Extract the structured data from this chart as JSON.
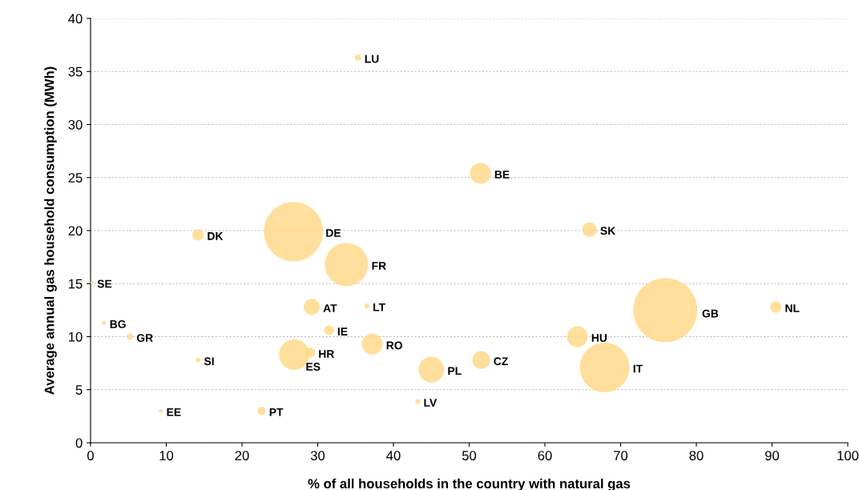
{
  "chart_data": {
    "type": "bubble",
    "xlabel": "% of all households in the country with natural gas",
    "ylabel": "Average annual gas household consumption (MWh)",
    "x": [
      35.3,
      51.5,
      26.8,
      14.2,
      65.9,
      33.8,
      0.2,
      29.2,
      36.5,
      75.9,
      90.5,
      1.8,
      31.5,
      5.2,
      64.3,
      37.2,
      29.0,
      26.9,
      14.2,
      51.6,
      45.0,
      67.9,
      43.2,
      9.3,
      22.6
    ],
    "values": [
      36.3,
      25.4,
      19.9,
      19.6,
      20.1,
      16.8,
      15.1,
      12.8,
      12.9,
      12.5,
      12.8,
      11.3,
      10.6,
      10.0,
      10.0,
      9.3,
      8.5,
      8.3,
      7.8,
      7.8,
      6.9,
      7.1,
      3.9,
      3.0,
      3.0
    ],
    "sizes": [
      0.01,
      0.106,
      0.856,
      0.031,
      0.051,
      0.456,
      0.003,
      0.063,
      0.006,
      1,
      0.031,
      0.004,
      0.023,
      0.01,
      0.106,
      0.106,
      0.023,
      0.226,
      0.006,
      0.076,
      0.16,
      0.6,
      0.006,
      0.004,
      0.016
    ],
    "color": "#ffd98a",
    "annotations": [
      {
        "text": "LU",
        "x": 35.3,
        "y": 36.3
      },
      {
        "text": "BE",
        "x": 51.5,
        "y": 25.4
      },
      {
        "text": "DE",
        "x": 30.6,
        "y": 19.9
      },
      {
        "text": "DK",
        "x": 14.2,
        "y": 19.6
      },
      {
        "text": "SK",
        "x": 65.9,
        "y": 20.1
      },
      {
        "text": "FR",
        "x": 33.8,
        "y": 16.8
      },
      {
        "text": "SE",
        "x": 0.2,
        "y": 15.1
      },
      {
        "text": "AT",
        "x": 29.2,
        "y": 12.8
      },
      {
        "text": "LT",
        "x": 36.5,
        "y": 12.9
      },
      {
        "text": "GB",
        "x": 80.3,
        "y": 12.3
      },
      {
        "text": "NL",
        "x": 90.5,
        "y": 12.8
      },
      {
        "text": "BG",
        "x": 1.8,
        "y": 11.3
      },
      {
        "text": "IE",
        "x": 31.5,
        "y": 10.6
      },
      {
        "text": "GR",
        "x": 5.2,
        "y": 10.0
      },
      {
        "text": "HU",
        "x": 64.3,
        "y": 10.0
      },
      {
        "text": "RO",
        "x": 37.2,
        "y": 9.3
      },
      {
        "text": "HR",
        "x": 29.0,
        "y": 8.5
      },
      {
        "text": "ES",
        "x": 26.9,
        "y": 8.3
      },
      {
        "text": "SI",
        "x": 14.2,
        "y": 7.8
      },
      {
        "text": "CZ",
        "x": 51.6,
        "y": 7.8
      },
      {
        "text": "PL",
        "x": 45.0,
        "y": 6.9
      },
      {
        "text": "IT",
        "x": 67.9,
        "y": 7.1
      },
      {
        "text": "LV",
        "x": 43.2,
        "y": 3.9
      },
      {
        "text": "EE",
        "x": 9.3,
        "y": 3.0
      },
      {
        "text": "PT",
        "x": 22.6,
        "y": 3.0
      }
    ],
    "xlim": [
      0,
      100
    ],
    "xticks": [
      0,
      10,
      20,
      30,
      40,
      50,
      60,
      70,
      80,
      90,
      100
    ],
    "ylim": [
      0,
      40
    ],
    "yticks": [
      0,
      5,
      10,
      15,
      20,
      25,
      30,
      35,
      40
    ],
    "grid": "y"
  }
}
